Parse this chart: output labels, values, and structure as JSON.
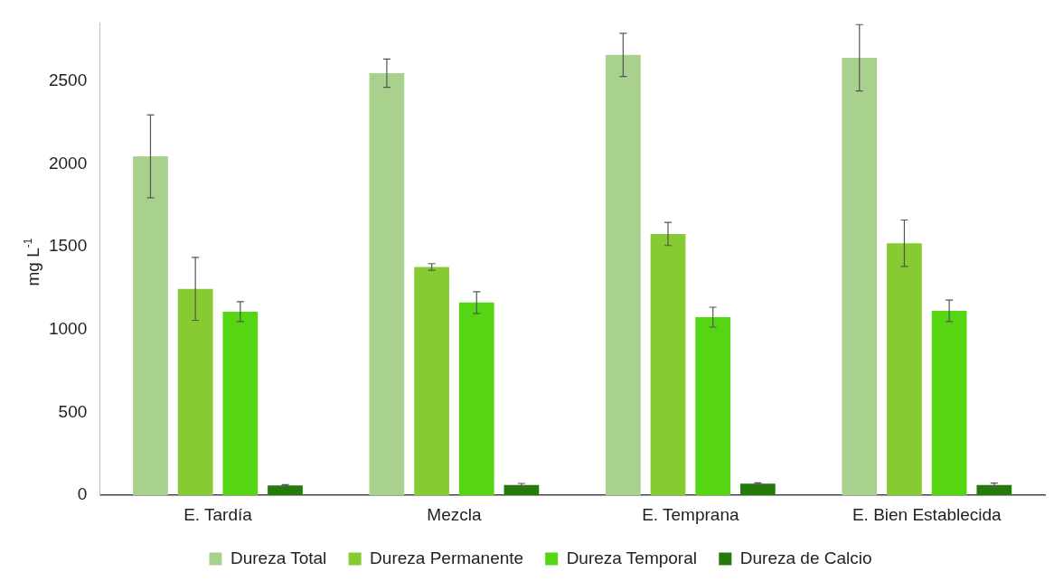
{
  "chart_data": {
    "type": "bar",
    "ylabel": "mg L$^{-1}$",
    "categories": [
      "E. Tardía",
      "Mezcla",
      "E. Temprana",
      "E. Bien Establecida"
    ],
    "series": [
      {
        "name": "Dureza Total",
        "color": "#a9d18e",
        "values": [
          2045,
          2547,
          2657,
          2640
        ],
        "errors": [
          250,
          85,
          130,
          200
        ]
      },
      {
        "name": "Dureza Permanente",
        "color": "#86cb32",
        "values": [
          1246,
          1378,
          1577,
          1521
        ],
        "errors": [
          190,
          20,
          70,
          140
        ]
      },
      {
        "name": "Dureza Temporal",
        "color": "#56d612",
        "values": [
          1108,
          1163,
          1075,
          1113
        ],
        "errors": [
          60,
          65,
          60,
          65
        ]
      },
      {
        "name": "Dureza de Calcio",
        "color": "#267a0b",
        "values": [
          60,
          62,
          70,
          62
        ],
        "errors": [
          5,
          10,
          5,
          12
        ]
      }
    ],
    "ylim": [
      0,
      2850
    ],
    "yticks": [
      0,
      500,
      1000,
      1500,
      2000,
      2500
    ],
    "grid": false,
    "legend": "bottom"
  }
}
